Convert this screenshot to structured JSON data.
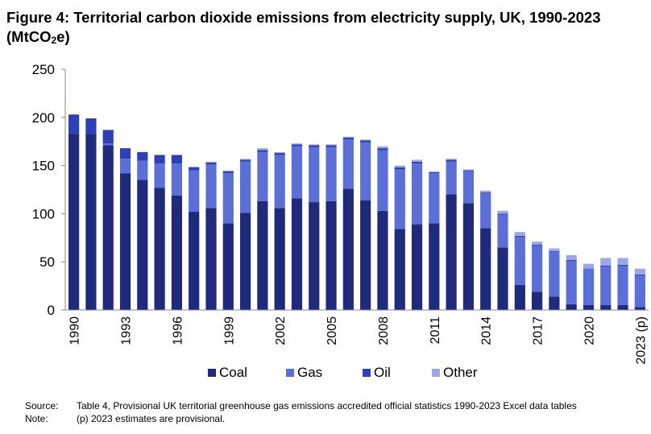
{
  "title_line1": "Figure 4: Territorial carbon dioxide emissions from electricity supply, UK, 1990-2023",
  "title_line2_pre": "(MtCO",
  "title_line2_sub": "2",
  "title_line2_post": "e)",
  "notes": {
    "source_label": "Source:",
    "source_text": "Table 4, Provisional UK territorial greenhouse gas emissions accredited official statistics 1990-2023 Excel data tables",
    "note_label": "Note:",
    "note_text": "(p) 2023 estimates are provisional."
  },
  "chart_data": {
    "type": "bar",
    "stacked": true,
    "title": "Territorial carbon dioxide emissions from electricity supply, UK, 1990-2023 (MtCO2e)",
    "xlabel": "",
    "ylabel": "",
    "ylim": [
      0,
      250
    ],
    "yticks": [
      0,
      50,
      100,
      150,
      200,
      250
    ],
    "grid": false,
    "legend_position": "bottom",
    "categories": [
      "1990",
      "1991",
      "1992",
      "1993",
      "1994",
      "1995",
      "1996",
      "1997",
      "1998",
      "1999",
      "2000",
      "2001",
      "2002",
      "2003",
      "2004",
      "2005",
      "2006",
      "2007",
      "2008",
      "2009",
      "2010",
      "2011",
      "2012",
      "2013",
      "2014",
      "2015",
      "2016",
      "2017",
      "2018",
      "2019",
      "2020",
      "2021",
      "2022",
      "2023 (p)"
    ],
    "category_labels": [
      "1990",
      "",
      "",
      "1993",
      "",
      "",
      "1996",
      "",
      "",
      "1999",
      "",
      "",
      "2002",
      "",
      "",
      "2005",
      "",
      "",
      "2008",
      "",
      "",
      "2011",
      "",
      "",
      "2014",
      "",
      "",
      "2017",
      "",
      "",
      "2020",
      "",
      "",
      "2023 (p)"
    ],
    "series": [
      {
        "name": "Coal",
        "color": "#1f2a7a",
        "values": [
          183,
          183,
          171,
          142,
          135,
          127,
          119,
          102,
          106,
          90,
          101,
          113,
          106,
          116,
          112,
          113,
          126,
          114,
          103,
          84,
          89,
          90,
          120,
          111,
          85,
          65,
          26,
          19,
          14,
          6,
          5,
          5,
          5,
          3
        ]
      },
      {
        "name": "Gas",
        "color": "#5b6fd6",
        "values": [
          0,
          0,
          2,
          15,
          20,
          25,
          33,
          43,
          45,
          52,
          53,
          51,
          55,
          54,
          57,
          56,
          51,
          60,
          63,
          62,
          63,
          52,
          34,
          33,
          36,
          34,
          50,
          48,
          46,
          45,
          38,
          40,
          41,
          33
        ]
      },
      {
        "name": "Oil",
        "color": "#2e40b8",
        "values": [
          20,
          16,
          14,
          11,
          9,
          9,
          9,
          3,
          2,
          2,
          2,
          2,
          2,
          2,
          2,
          2,
          2,
          2,
          2,
          2,
          2,
          1,
          2,
          1,
          1,
          1,
          1,
          1,
          1,
          1,
          0,
          1,
          1,
          1
        ]
      },
      {
        "name": "Other",
        "color": "#9aa8ea",
        "values": [
          0,
          0,
          0,
          0,
          0,
          0,
          0,
          1,
          1,
          1,
          1,
          2,
          1,
          1,
          1,
          1,
          1,
          1,
          2,
          2,
          2,
          1,
          1,
          1,
          2,
          3,
          4,
          3,
          3,
          5,
          5,
          8,
          7,
          6
        ]
      }
    ]
  }
}
